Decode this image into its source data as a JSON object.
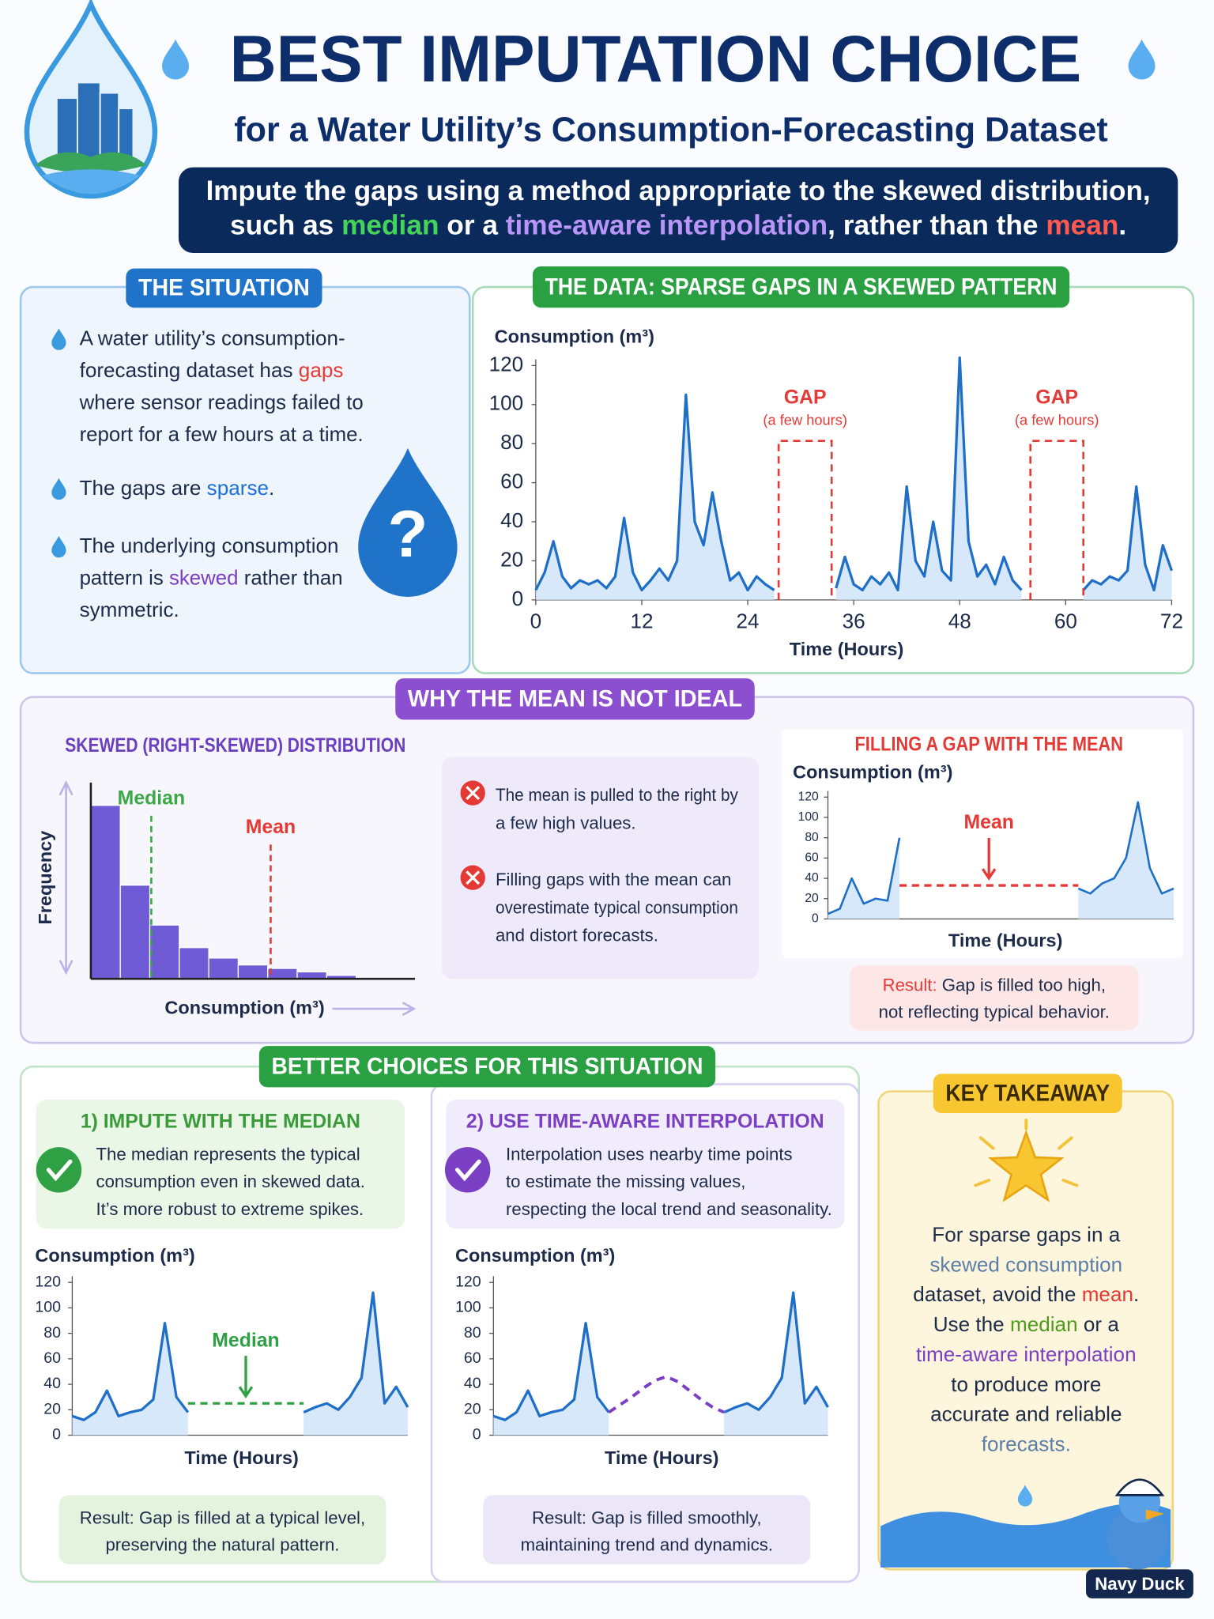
{
  "header": {
    "title": "BEST IMPUTATION CHOICE",
    "subtitle": "for a Water Utility’s Consumption-Forecasting Dataset",
    "banner": [
      [
        "Impute the gaps using a method appropriate to the skewed distribution,"
      ],
      [
        "such as ",
        {
          "text": "median",
          "color": "#44d45a"
        },
        " or a ",
        {
          "text": "time-aware interpolation",
          "color": "#b895f7"
        },
        ", rather than the ",
        {
          "text": "mean",
          "color": "#ff5a4f"
        },
        "."
      ]
    ]
  },
  "situation": {
    "title": "THE SITUATION",
    "question_icon": "?",
    "bullets": [
      [
        [
          "A water utility’s consumption-"
        ],
        [
          "forecasting dataset has ",
          {
            "text": "gaps",
            "color": "#e53935"
          }
        ],
        [
          "where sensor readings failed to"
        ],
        [
          "report for a few hours at a time."
        ]
      ],
      [
        [
          "The gaps are ",
          {
            "text": "sparse",
            "color": "#1e6fd9"
          },
          "."
        ]
      ],
      [
        [
          "The underlying consumption"
        ],
        [
          "pattern is ",
          {
            "text": "skewed",
            "color": "#7b3fc4"
          },
          " rather than"
        ],
        [
          "symmetric."
        ]
      ]
    ]
  },
  "data_chart": {
    "type": "line",
    "title": "THE DATA: SPARSE GAPS IN A SKEWED PATTERN",
    "y_label": "Consumption (m³)",
    "x_label": "Time (Hours)",
    "color": "#1f6fc8",
    "x": [
      0,
      1,
      2,
      3,
      4,
      5,
      6,
      7,
      8,
      9,
      10,
      11,
      12,
      13,
      14,
      15,
      16,
      17,
      18,
      19,
      20,
      21,
      22,
      23,
      24,
      25,
      26,
      27,
      28,
      29,
      30,
      31,
      32,
      33,
      34,
      35,
      36,
      37,
      38,
      39,
      40,
      41,
      42,
      43,
      44,
      45,
      46,
      47,
      48,
      49,
      50,
      51,
      52,
      53,
      54,
      55,
      56,
      57,
      58,
      59,
      60,
      61,
      62,
      63,
      64,
      65,
      66,
      67,
      68,
      69,
      70,
      71,
      72
    ],
    "values": [
      5,
      14,
      30,
      12,
      6,
      10,
      8,
      10,
      6,
      12,
      42,
      14,
      5,
      10,
      16,
      10,
      20,
      105,
      40,
      28,
      55,
      30,
      10,
      14,
      5,
      12,
      8,
      5,
      null,
      null,
      null,
      null,
      null,
      null,
      6,
      22,
      8,
      5,
      12,
      8,
      14,
      5,
      58,
      20,
      12,
      40,
      15,
      10,
      124,
      30,
      12,
      18,
      8,
      22,
      10,
      5,
      null,
      null,
      null,
      null,
      null,
      null,
      5,
      10,
      8,
      12,
      10,
      15,
      58,
      18,
      5,
      28,
      15
    ],
    "xlim": [
      0,
      72
    ],
    "xticks": [
      0,
      12,
      24,
      36,
      48,
      60,
      72
    ],
    "ylim": [
      0,
      120
    ],
    "yticks": [
      0,
      20,
      40,
      60,
      80,
      100,
      120
    ],
    "gaps": [
      {
        "label": "GAP",
        "note": "(a few hours)",
        "start": 27.5,
        "end": 33.5
      },
      {
        "label": "GAP",
        "note": "(a few hours)",
        "start": 56,
        "end": 62
      }
    ]
  },
  "why": {
    "title": "WHY THE MEAN IS NOT IDEAL",
    "histogram": {
      "type": "histogram",
      "title": "SKEWED (RIGHT-SKEWED) DISTRIBUTION",
      "y_label": "Frequency",
      "x_label": "Consumption (m³)",
      "color": "#6f5bd6",
      "bins": [
        0,
        1,
        2,
        3,
        4,
        5,
        6,
        7,
        8,
        9
      ],
      "values": [
        100,
        54,
        31,
        18,
        12,
        8,
        6,
        4,
        2
      ],
      "ylim": [
        0,
        100
      ],
      "xlim": [
        0,
        9
      ],
      "markers": [
        {
          "label": "Median",
          "x": 2.05,
          "color": "#3aa845"
        },
        {
          "label": "Mean",
          "x": 6.1,
          "color": "#e53935"
        }
      ]
    },
    "reasons": [
      [
        [
          "The mean is pulled to the right by"
        ],
        [
          "a few high values."
        ]
      ],
      [
        [
          "Filling gaps with the mean can"
        ],
        [
          "overestimate typical consumption"
        ],
        [
          "and distort forecasts."
        ]
      ]
    ],
    "mean_chart": {
      "type": "line",
      "title": "FILLING A GAP WITH THE MEAN",
      "y_label": "Consumption (m³)",
      "x_label": "Time (Hours)",
      "color": "#1f6fc8",
      "values": [
        5,
        10,
        40,
        15,
        20,
        18,
        80,
        null,
        null,
        null,
        null,
        null,
        null,
        null,
        null,
        null,
        null,
        null,
        null,
        null,
        null,
        30,
        25,
        35,
        40,
        60,
        115,
        50,
        25,
        30
      ],
      "ylim": [
        0,
        120
      ],
      "yticks": [
        0,
        20,
        40,
        60,
        80,
        100,
        120
      ],
      "fill": {
        "label": "Mean",
        "value": 33,
        "color": "#e53935"
      }
    },
    "result": [
      [
        {
          "text": "Result:",
          "color": "#e53935"
        },
        " Gap is filled too high,"
      ],
      [
        "not reflecting typical behavior."
      ]
    ]
  },
  "better": {
    "title": "BETTER CHOICES FOR THIS SITUATION",
    "options": [
      {
        "title": "1) IMPUTE WITH THE MEDIAN",
        "lines": [
          [
            "The median represents the typical"
          ],
          [
            "consumption even in skewed data."
          ],
          [
            "It’s more robust to extreme spikes."
          ]
        ],
        "chart": {
          "type": "line",
          "y_label": "Consumption (m³)",
          "x_label": "Time (Hours)",
          "color": "#1f6fc8",
          "values": [
            15,
            12,
            18,
            35,
            15,
            18,
            20,
            28,
            88,
            30,
            18,
            null,
            null,
            null,
            null,
            null,
            null,
            null,
            null,
            null,
            18,
            22,
            25,
            20,
            30,
            45,
            112,
            25,
            38,
            22
          ],
          "ylim": [
            0,
            120
          ],
          "yticks": [
            0,
            20,
            40,
            60,
            80,
            100,
            120
          ],
          "fill": {
            "label": "Median",
            "value": 25,
            "color": "#2fa043"
          }
        },
        "result": [
          [
            "Result: Gap is filled at a typical level,"
          ],
          [
            "preserving the natural pattern."
          ]
        ]
      },
      {
        "title": "2) USE TIME-AWARE INTERPOLATION",
        "lines": [
          [
            "Interpolation uses nearby time points"
          ],
          [
            "to estimate the missing values,"
          ],
          [
            "respecting the local trend and seasonality."
          ]
        ],
        "chart": {
          "type": "line",
          "y_label": "Consumption (m³)",
          "x_label": "Time (Hours)",
          "color": "#1f6fc8",
          "values": [
            15,
            12,
            18,
            35,
            15,
            18,
            20,
            28,
            88,
            30,
            18,
            null,
            null,
            null,
            null,
            null,
            null,
            null,
            null,
            null,
            18,
            22,
            25,
            20,
            30,
            45,
            112,
            25,
            38,
            22
          ],
          "ylim": [
            0,
            120
          ],
          "yticks": [
            0,
            20,
            40,
            60,
            80,
            100,
            120
          ],
          "interpolated": [
            24,
            30,
            37,
            43,
            46,
            42,
            35,
            28,
            22
          ],
          "interpolated_color": "#7b3fc4"
        },
        "result": [
          [
            "Result: Gap is filled smoothly,"
          ],
          [
            "maintaining trend and dynamics."
          ]
        ]
      }
    ]
  },
  "takeaway": {
    "title": "KEY TAKEAWAY",
    "lines": [
      [
        "For sparse gaps in a"
      ],
      [
        {
          "text": "skewed consumption",
          "color": "#5b7fa8"
        }
      ],
      [
        "dataset, avoid the ",
        {
          "text": "mean",
          "color": "#e53935"
        },
        "."
      ],
      [
        "Use the ",
        {
          "text": "median",
          "color": "#4d9a1f"
        },
        " or a"
      ],
      [
        {
          "text": "time-aware interpolation",
          "color": "#7b3fc4"
        }
      ],
      [
        "to produce more"
      ],
      [
        "accurate and reliable"
      ],
      [
        {
          "text": "forecasts.",
          "color": "#5b7fa8"
        }
      ]
    ],
    "brand": "Navy Duck"
  }
}
